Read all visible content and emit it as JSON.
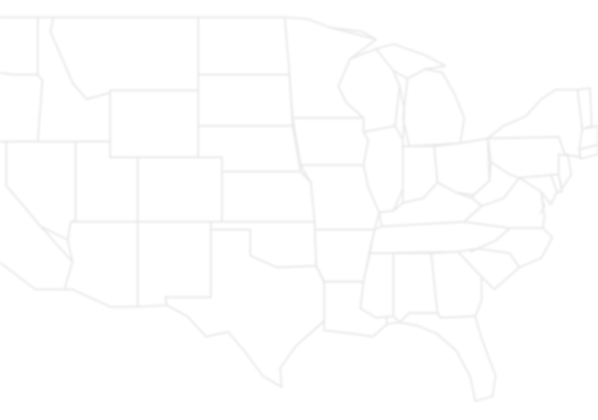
{
  "map": {
    "fill_color": "#ffffff",
    "border_color": "#e8e8e8",
    "background_color": "#ffffff"
  },
  "states": [
    {
      "id": "washington"
    },
    {
      "id": "oregon"
    },
    {
      "id": "california"
    },
    {
      "id": "nevada"
    },
    {
      "id": "idaho"
    },
    {
      "id": "montana"
    },
    {
      "id": "wyoming"
    },
    {
      "id": "utah"
    },
    {
      "id": "arizona"
    },
    {
      "id": "colorado"
    },
    {
      "id": "new-mexico"
    },
    {
      "id": "north-dakota"
    },
    {
      "id": "south-dakota"
    },
    {
      "id": "nebraska"
    },
    {
      "id": "kansas"
    },
    {
      "id": "oklahoma"
    },
    {
      "id": "texas"
    },
    {
      "id": "minnesota"
    },
    {
      "id": "iowa"
    },
    {
      "id": "missouri"
    },
    {
      "id": "arkansas"
    },
    {
      "id": "louisiana"
    },
    {
      "id": "wisconsin"
    },
    {
      "id": "illinois"
    },
    {
      "id": "michigan"
    },
    {
      "id": "indiana"
    },
    {
      "id": "ohio"
    },
    {
      "id": "kentucky"
    },
    {
      "id": "tennessee"
    },
    {
      "id": "mississippi"
    },
    {
      "id": "alabama"
    },
    {
      "id": "georgia"
    },
    {
      "id": "florida"
    },
    {
      "id": "south-carolina"
    },
    {
      "id": "north-carolina"
    },
    {
      "id": "virginia"
    },
    {
      "id": "west-virginia"
    },
    {
      "id": "pennsylvania"
    },
    {
      "id": "new-york"
    },
    {
      "id": "maryland"
    },
    {
      "id": "delaware"
    },
    {
      "id": "new-jersey"
    },
    {
      "id": "new-england"
    }
  ]
}
